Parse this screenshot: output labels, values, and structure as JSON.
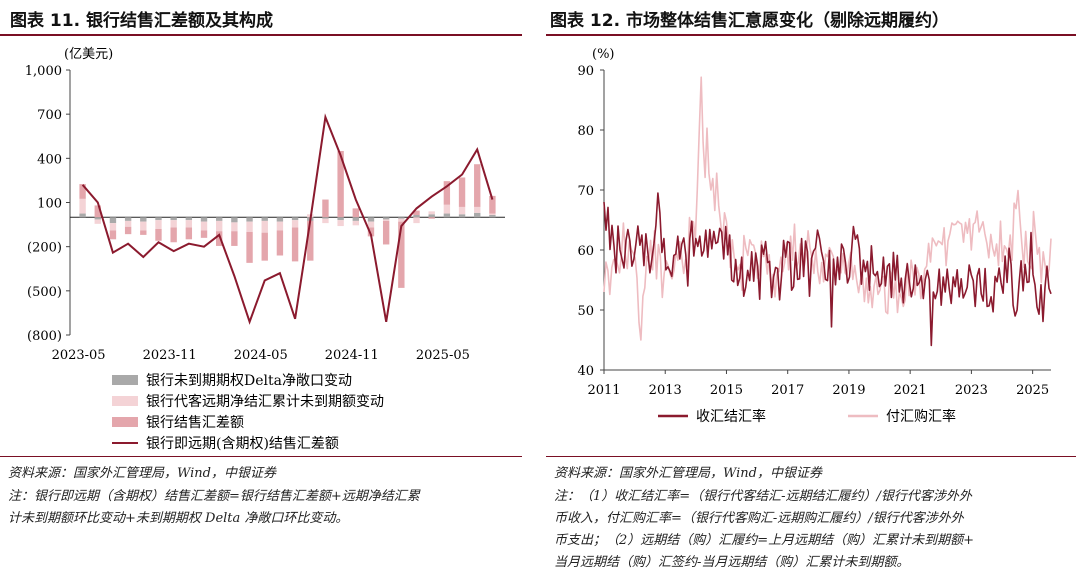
{
  "left": {
    "title": "图表 11. 银行结售汇差额及其构成",
    "source": "资料来源：国家外汇管理局，Wind，中银证券",
    "note_lines": [
      "注：银行即远期（含期权）结售汇差额=银行结售汇差额+远期净结汇累",
      "计未到期额环比变动+未到期期权 Delta 净敞口环比变动。"
    ]
  },
  "right": {
    "title": "图表 12. 市场整体结售汇意愿变化（剔除远期履约）",
    "source": "资料来源：国家外汇管理局，Wind，中银证券",
    "note_lines": [
      "注：（1）收汇结汇率=（银行代客结汇-远期结汇履约）/银行代客涉外外",
      "币收入，付汇购汇率=（银行代客购汇-远期购汇履约）/银行代客涉外外",
      "币支出；（2）远期结（购）汇履约=上月远期结（购）汇累计未到期额+",
      "当月远期结（购）汇签约-当月远期结（购）汇累计未到期额。"
    ]
  },
  "chart_data": [
    {
      "type": "bar",
      "title": "图表 11. 银行结售汇差额及其构成",
      "ylabel": "(亿美元)",
      "ylim": [
        -800,
        1000
      ],
      "yticks": [
        -800,
        -500,
        -200,
        100,
        400,
        700,
        1000
      ],
      "ytick_labels": [
        "(800)",
        "(500)",
        "(200)",
        "100",
        "400",
        "700",
        "1,000"
      ],
      "categories": [
        "2023-05",
        "2023-06",
        "2023-07",
        "2023-08",
        "2023-09",
        "2023-10",
        "2023-11",
        "2023-12",
        "2024-01",
        "2024-02",
        "2024-03",
        "2024-04",
        "2024-05",
        "2024-06",
        "2024-07",
        "2024-08",
        "2024-09",
        "2024-10",
        "2024-11",
        "2024-12",
        "2025-01",
        "2025-02",
        "2025-03",
        "2025-04",
        "2025-05",
        "2025-06",
        "2025-07",
        "2025-08"
      ],
      "xtick_labels": [
        "2023-05",
        "2023-11",
        "2024-05",
        "2024-11",
        "2025-05"
      ],
      "xtick_indices": [
        0,
        6,
        12,
        18,
        24
      ],
      "stacked_series": [
        {
          "name": "银行未到期期权Delta净敞口变动",
          "color": "#a9a9a9",
          "values": [
            25,
            -15,
            -40,
            -25,
            -30,
            -20,
            -20,
            -20,
            -30,
            -25,
            -35,
            -30,
            -25,
            -30,
            -20,
            -25,
            -10,
            -20,
            -25,
            -30,
            -15,
            -10,
            15,
            20,
            25,
            20,
            30,
            15
          ]
        },
        {
          "name": "银行代客远期净结汇累计未到期额变动",
          "color": "#f4d3d6",
          "values": [
            100,
            -30,
            -50,
            -40,
            -60,
            -60,
            -50,
            -50,
            -60,
            -70,
            -60,
            -70,
            -80,
            -60,
            -50,
            20,
            -30,
            -40,
            -30,
            -40,
            -10,
            -20,
            -40,
            20,
            60,
            50,
            40,
            10
          ]
        },
        {
          "name": "银行结售汇差额",
          "color": "#e4a6ac",
          "values": [
            100,
            80,
            -60,
            -50,
            -30,
            -80,
            -100,
            -80,
            -50,
            -100,
            -100,
            -210,
            -190,
            -170,
            -230,
            -270,
            120,
            450,
            60,
            -60,
            -160,
            -450,
            30,
            -10,
            160,
            200,
            290,
            120
          ]
        }
      ],
      "line_series": {
        "name": "银行即远期(含期权)结售汇差额",
        "color": "#8b1a2e",
        "values": [
          220,
          100,
          -240,
          -180,
          -270,
          -170,
          -230,
          -180,
          -200,
          -120,
          -400,
          -710,
          -430,
          -380,
          -690,
          -20,
          680,
          420,
          120,
          -120,
          -710,
          -60,
          60,
          140,
          210,
          290,
          460,
          120
        ]
      },
      "legend_position": "bottom"
    },
    {
      "type": "line",
      "title": "图表 12. 市场整体结售汇意愿变化（剔除远期履约）",
      "ylabel": "(%)",
      "ylim": [
        40,
        90
      ],
      "yticks": [
        40,
        50,
        60,
        70,
        80,
        90
      ],
      "xlim": [
        2011,
        2025.6
      ],
      "xticks": [
        2011,
        2013,
        2015,
        2017,
        2019,
        2021,
        2023,
        2025
      ],
      "series": [
        {
          "name": "收汇结汇率",
          "color": "#8b1a2e",
          "values": [
            68.0,
            63.3,
            67.1,
            60.1,
            64.1,
            60.7,
            56.2,
            64.0,
            60.0,
            58.5,
            57.0,
            61.6,
            63.4,
            61.5,
            57.3,
            58.5,
            61.0,
            64.0,
            60.8,
            62.5,
            57.4,
            62.7,
            59.5,
            56.2,
            58.5,
            61.0,
            64.1,
            69.5,
            66.2,
            59.6,
            61.9,
            56.7,
            57.2,
            56.5,
            55.6,
            59.1,
            59.3,
            62.3,
            58.5,
            61.0,
            62.0,
            59.2,
            54.0,
            61.9,
            64.8,
            59.0,
            61.9,
            60.6,
            62.3,
            59.0,
            59.9,
            63.3,
            58.8,
            63.4,
            60.2,
            63.1,
            61.1,
            61.3,
            63.6,
            63.0,
            58.5,
            63.9,
            59.2,
            62.5,
            55.0,
            54.7,
            58.4,
            54.1,
            55.3,
            58.8,
            52.3,
            53.8,
            56.6,
            54.9,
            59.7,
            54.8,
            59.5,
            57.3,
            51.8,
            60.8,
            59.3,
            61.4,
            57.9,
            58.1,
            52.1,
            55.5,
            57.1,
            56.9,
            51.7,
            55.8,
            61.6,
            58.8,
            61.4,
            61.2,
            53.3,
            53.9,
            59.6,
            55.1,
            55.2,
            61.9,
            55.6,
            61.5,
            59.7,
            52.3,
            58.6,
            59.8,
            60.3,
            63.3,
            61.9,
            59.7,
            58.2,
            55.1,
            54.9,
            59.9,
            47.2,
            58.5,
            54.2,
            58.8,
            55.1,
            61.0,
            60.2,
            57.9,
            54.5,
            55.5,
            59.6,
            63.9,
            61.8,
            62.5,
            60.2,
            54.3,
            58.3,
            56.4,
            58.1,
            53.3,
            60.7,
            56.1,
            55.7,
            56.4,
            53.9,
            54.4,
            58.8,
            54.0,
            57.3,
            57.7,
            52.1,
            59.6,
            55.0,
            59.1,
            53.0,
            55.3,
            51.2,
            55.2,
            57.7,
            54.7,
            52.2,
            53.6,
            57.5,
            54.1,
            54.6,
            55.7,
            51.9,
            55.1,
            56.6,
            55.0,
            44.1,
            53.0,
            51.9,
            53.1,
            56.8,
            50.8,
            55.5,
            53.0,
            56.8,
            53.6,
            51.1,
            55.5,
            53.9,
            56.7,
            52.2,
            55.2,
            52.0,
            52.8,
            53.8,
            57.5,
            55.9,
            54.9,
            50.6,
            55.7,
            56.9,
            52.7,
            51.5,
            56.9,
            50.6,
            50.7,
            52.2,
            49.7,
            55.6,
            54.7,
            57.0,
            54.5,
            52.8,
            59.0,
            54.6,
            60.3,
            57.6,
            50.8,
            49.0,
            50.0,
            54.5,
            58.2,
            53.2,
            57.6,
            54.6,
            54.7,
            62.9,
            55.9,
            54.2,
            50.5,
            49.3,
            54.2,
            48.1,
            53.8,
            57.3,
            53.6,
            52.7
          ]
        },
        {
          "name": "付汇购汇率",
          "color": "#eebcc1",
          "values": [
            53.0,
            58.0,
            56.6,
            52.6,
            57.1,
            58.4,
            58.5,
            57.5,
            56.2,
            59.2,
            64.5,
            59.0,
            56.9,
            61.5,
            60.1,
            59.5,
            58.7,
            55.3,
            47.9,
            45.0,
            52.3,
            53.7,
            58.9,
            58.0,
            61.6,
            56.7,
            63.2,
            55.2,
            60.9,
            58.9,
            52.1,
            56.1,
            58.2,
            57.4,
            56.0,
            55.2,
            56.6,
            59.7,
            58.3,
            61.4,
            58.8,
            56.1,
            58.4,
            57.2,
            65.4,
            63.1,
            64.7,
            61.8,
            70.1,
            79.6,
            88.8,
            77.9,
            72.1,
            80.3,
            72.8,
            70.0,
            71.9,
            66.6,
            72.8,
            67.4,
            64.6,
            61.2,
            66.2,
            64.8,
            61.7,
            57.1,
            61.7,
            58.8,
            57.5,
            56.7,
            57.6,
            53.3,
            62.4,
            60.3,
            59.1,
            61.7,
            60.9,
            60.8,
            59.5,
            55.3,
            56.0,
            61.5,
            58.9,
            59.3,
            56.0,
            59.2,
            53.8,
            55.9,
            52.2,
            56.3,
            56.4,
            58.8,
            56.4,
            57.9,
            61.2,
            56.7,
            62.3,
            58.3,
            64.3,
            57.0,
            58.0,
            61.0,
            59.7,
            57.3,
            59.0,
            63.2,
            60.3,
            58.7,
            56.1,
            60.1,
            56.4,
            54.4,
            57.9,
            54.7,
            59.3,
            58.9,
            60.4,
            59.7,
            58.9,
            55.8,
            56.6,
            56.9,
            56.2,
            59.4,
            56.2,
            55.8,
            58.0,
            59.6,
            55.1,
            57.4,
            54.9,
            52.9,
            55.0,
            55.9,
            51.4,
            55.3,
            51.2,
            53.9,
            50.4,
            54.0,
            55.6,
            52.6,
            53.3,
            55.5,
            55.6,
            49.7,
            49.4,
            56.6,
            55.9,
            52.0,
            55.4,
            49.6,
            53.0,
            52.0,
            50.6,
            51.7,
            57.8,
            52.4,
            58.3,
            56.4,
            52.5,
            57.1,
            56.0,
            51.9,
            53.6,
            56.8,
            57.3,
            61.1,
            58.0,
            62.0,
            61.4,
            60.7,
            61.5,
            61.3,
            60.9,
            63.7,
            57.4,
            61.5,
            62.7,
            64.5,
            64.2,
            64.3,
            64.8,
            64.5,
            64.3,
            61.3,
            64.6,
            62.8,
            65.2,
            60.0,
            64.3,
            64.6,
            66.5,
            63.0,
            63.8,
            64.7,
            62.7,
            61.1,
            58.7,
            62.6,
            60.3,
            59.0,
            61.0,
            57.4,
            64.8,
            58.1,
            60.7,
            60.2,
            59.1,
            62.5,
            58.3,
            67.8,
            66.9,
            69.9,
            65.2,
            61.1,
            57.1,
            63.1,
            58.1,
            57.4,
            56.9,
            66.4,
            62.6,
            59.3,
            60.4,
            54.6,
            59.7,
            57.3,
            55.5,
            56.8,
            61.9
          ]
        }
      ],
      "legend_position": "bottom"
    }
  ]
}
